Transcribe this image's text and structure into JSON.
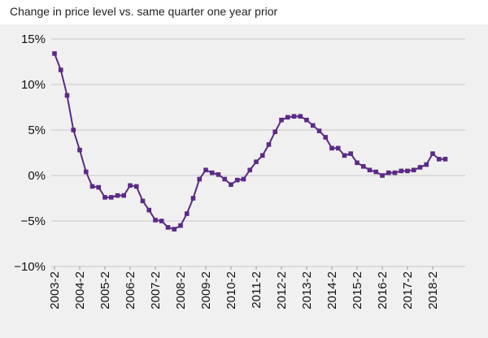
{
  "chart_data": {
    "type": "line",
    "title": "Change in price level vs. same quarter one year prior",
    "xlabel": "",
    "ylabel": "",
    "ylim": [
      -10,
      15
    ],
    "grid": true,
    "legend": "none",
    "line_color": "#5b2a86",
    "y_ticks": [
      "15%",
      "10%",
      "5%",
      "0%",
      "−10%"
    ],
    "y_tick_values": [
      15,
      10,
      5,
      0,
      -10
    ],
    "y_tick_labels": [
      {
        "value": 15,
        "label": "15%"
      },
      {
        "value": 10,
        "label": "10%"
      },
      {
        "value": 5,
        "label": "5%"
      },
      {
        "value": 0,
        "label": "0%"
      },
      {
        "value": -5,
        "label": "−5%"
      },
      {
        "value": -10,
        "label": "−10%"
      }
    ],
    "x_tick_labels": [
      "2003-2",
      "2004-2",
      "2005-2",
      "2006-2",
      "2007-2",
      "2008-2",
      "2009-2",
      "2010-2",
      "2011-2",
      "2012-2",
      "2013-2",
      "2014-2",
      "2015-2",
      "2016-2",
      "2017-2",
      "2018-2"
    ],
    "series": [
      {
        "x": [
          "2003-2",
          "2003-3",
          "2003-4",
          "2004-1",
          "2004-2",
          "2004-3",
          "2004-4",
          "2005-1",
          "2005-2",
          "2005-3",
          "2005-4",
          "2006-1",
          "2006-2",
          "2006-3",
          "2006-4",
          "2007-1",
          "2007-2",
          "2007-3",
          "2007-4",
          "2008-1",
          "2008-2",
          "2008-3",
          "2008-4",
          "2009-1",
          "2009-2",
          "2009-3",
          "2009-4",
          "2010-1",
          "2010-2",
          "2010-3",
          "2010-4",
          "2011-1",
          "2011-2",
          "2011-3",
          "2011-4",
          "2012-1",
          "2012-2",
          "2012-3",
          "2012-4",
          "2013-1",
          "2013-2",
          "2013-3",
          "2013-4",
          "2014-1",
          "2014-2",
          "2014-3",
          "2014-4",
          "2015-1",
          "2015-2",
          "2015-3",
          "2015-4",
          "2016-1",
          "2016-2",
          "2016-3",
          "2016-4",
          "2017-1",
          "2017-2",
          "2017-3",
          "2017-4",
          "2018-1",
          "2018-2",
          "2018-3",
          "2018-4"
        ],
        "values": [
          13.4,
          11.6,
          8.8,
          5.0,
          2.8,
          0.4,
          -1.2,
          -1.3,
          -2.4,
          -2.4,
          -2.2,
          -2.2,
          -1.1,
          -1.2,
          -2.8,
          -3.8,
          -4.9,
          -5.0,
          -5.7,
          -5.9,
          -5.5,
          -4.2,
          -2.5,
          -0.4,
          0.6,
          0.3,
          0.1,
          -0.4,
          -1.0,
          -0.5,
          -0.4,
          0.6,
          1.5,
          2.2,
          3.4,
          4.8,
          6.1,
          6.4,
          6.5,
          6.5,
          6.1,
          5.5,
          4.9,
          4.2,
          3.0,
          3.0,
          2.2,
          2.4,
          1.4,
          1.0,
          0.6,
          0.4,
          0.0,
          0.3,
          0.3,
          0.5,
          0.5,
          0.6,
          0.9,
          1.2,
          2.4,
          1.8,
          1.8
        ]
      }
    ]
  }
}
